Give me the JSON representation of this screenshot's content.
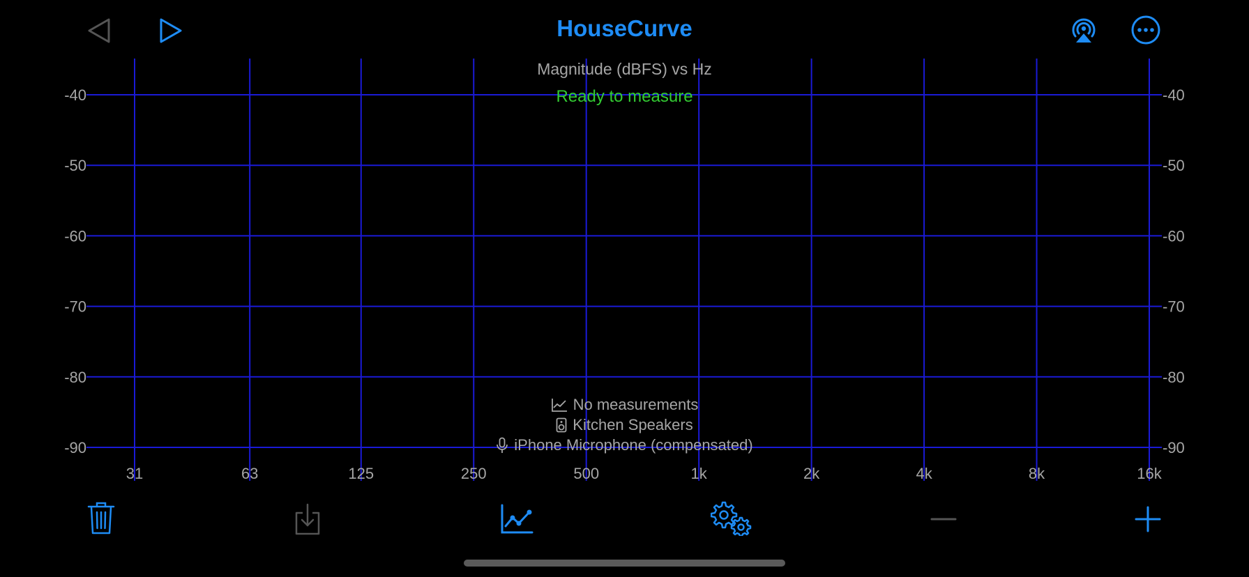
{
  "header": {
    "title": "HouseCurve",
    "back_icon": "triangle-left-icon",
    "play_icon": "play-icon",
    "airplay_icon": "airplay-audio-icon",
    "more_icon": "more-ellipsis-icon"
  },
  "chart_data": {
    "type": "line",
    "title": "Magnitude (dBFS) vs Hz",
    "status": "Ready to measure",
    "x_scale": "log2",
    "x_ticks": [
      {
        "value": 31,
        "label": "31"
      },
      {
        "value": 63,
        "label": "63"
      },
      {
        "value": 125,
        "label": "125"
      },
      {
        "value": 250,
        "label": "250"
      },
      {
        "value": 500,
        "label": "500"
      },
      {
        "value": 1000,
        "label": "1k"
      },
      {
        "value": 2000,
        "label": "2k"
      },
      {
        "value": 4000,
        "label": "4k"
      },
      {
        "value": 8000,
        "label": "8k"
      },
      {
        "value": 16000,
        "label": "16k"
      }
    ],
    "y_ticks": [
      -40,
      -50,
      -60,
      -70,
      -80,
      -90
    ],
    "ylim": [
      -90,
      -40
    ],
    "y_axis_both_sides": true,
    "grid": true,
    "grid_color": "#1a1ad6",
    "series": []
  },
  "info": {
    "measurements": "No measurements",
    "speaker": "Kitchen Speakers",
    "microphone": "iPhone Microphone (compensated)"
  },
  "toolbar": {
    "items": [
      {
        "name": "trash-icon",
        "enabled": true
      },
      {
        "name": "import-icon",
        "enabled": false
      },
      {
        "name": "chart-line-icon",
        "enabled": true
      },
      {
        "name": "gears-icon",
        "enabled": true
      },
      {
        "name": "minus-icon",
        "enabled": false
      },
      {
        "name": "plus-icon",
        "enabled": true
      }
    ]
  },
  "colors": {
    "accent": "#1e8cf5",
    "disabled": "#555555",
    "status_green": "#33cc33",
    "label_gray": "#a6a6a6",
    "grid_blue": "#1a1ad6",
    "background": "#000000"
  }
}
